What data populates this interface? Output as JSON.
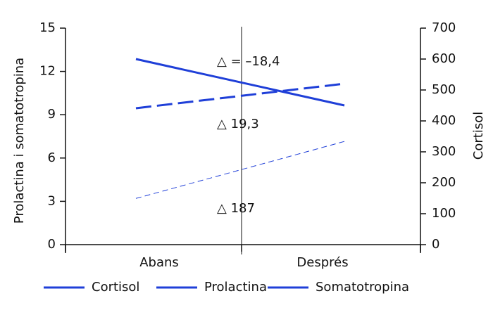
{
  "chart_data": {
    "type": "line",
    "categories": [
      "Abans",
      "Després"
    ],
    "ylabel": "Prolactina i somatotropina",
    "y2label": "Cortisol",
    "ylim": [
      0,
      15
    ],
    "yticks": [
      0,
      3,
      6,
      9,
      12,
      15
    ],
    "y2lim": [
      0,
      700
    ],
    "y2ticks": [
      0,
      100,
      200,
      300,
      400,
      500,
      600,
      700
    ],
    "series": [
      {
        "name": "Cortisol",
        "color": "#1f3fd8",
        "axis": "y2",
        "style": "solid",
        "width": 3,
        "values": [
          600,
          450
        ]
      },
      {
        "name": "Prolactina",
        "color": "#1f3fd8",
        "axis": "y",
        "style": "dashed",
        "width": 3,
        "values": [
          9.45,
          11.15
        ]
      },
      {
        "name": "Somatotropina",
        "color": "#1f3fd8",
        "axis": "y",
        "style": "dashed",
        "width": 1,
        "values": [
          3.2,
          7.15
        ]
      }
    ],
    "annotations": [
      "△ = –18,4",
      "△ 19,3",
      "△ 187"
    ]
  }
}
